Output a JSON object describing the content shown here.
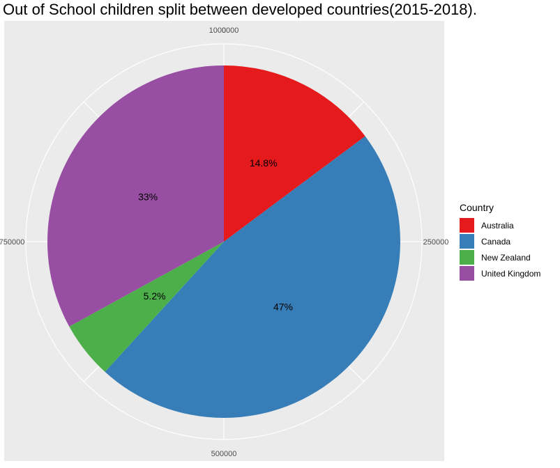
{
  "chart_data": {
    "type": "pie",
    "title": "Out of School children split between developed countries(2015-2018).",
    "legend_title": "Country",
    "legend_position": "right",
    "categories": [
      "Australia",
      "Canada",
      "New Zealand",
      "United Kingdom"
    ],
    "values": [
      147000,
      467000,
      52000,
      328000
    ],
    "percent_labels": [
      "14.8%",
      "47%",
      "5.2%",
      "33%"
    ],
    "colors": [
      "#e41a1c",
      "#377eb8",
      "#4daf4a",
      "#984ea3"
    ],
    "radial_ticks": [
      "0",
      "250000",
      "500000",
      "750000",
      "1000000"
    ],
    "radial_tick_values": [
      0,
      250000,
      500000,
      750000,
      1000000
    ],
    "axis_total": 1000000,
    "direction": "clockwise-from-top",
    "grid": true
  }
}
